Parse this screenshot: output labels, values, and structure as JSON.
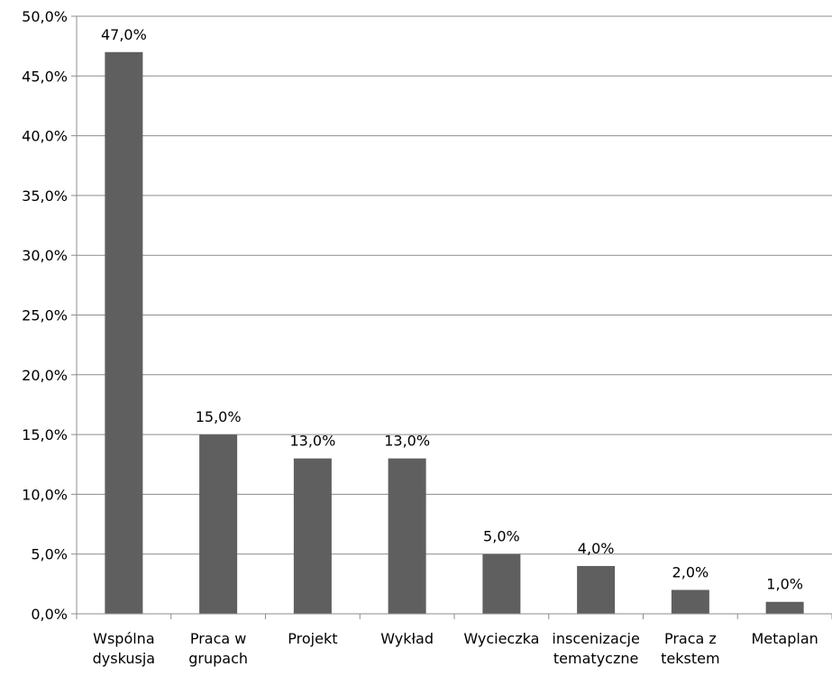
{
  "chart_data": {
    "type": "bar",
    "title": "",
    "xlabel": "",
    "ylabel": "",
    "ylim": [
      0,
      50
    ],
    "y_ticks": [
      0,
      5,
      10,
      15,
      20,
      25,
      30,
      35,
      40,
      45,
      50
    ],
    "y_tick_labels": [
      "0,0%",
      "5,0%",
      "10,0%",
      "15,0%",
      "20,0%",
      "25,0%",
      "30,0%",
      "35,0%",
      "40,0%",
      "45,0%",
      "50,0%"
    ],
    "grid": true,
    "legend": "none",
    "bar_color": "#5f5f5f",
    "grid_color": "#8c8c8c",
    "categories": [
      [
        "Wspólna",
        "dyskusja"
      ],
      [
        "Praca w",
        "grupach"
      ],
      [
        "Projekt"
      ],
      [
        "Wykład"
      ],
      [
        "Wycieczka"
      ],
      [
        "inscenizacje",
        "tematyczne"
      ],
      [
        "Praca z",
        "tekstem"
      ],
      [
        "Metaplan"
      ]
    ],
    "values": [
      47.0,
      15.0,
      13.0,
      13.0,
      5.0,
      4.0,
      2.0,
      1.0
    ],
    "data_labels": [
      "47,0%",
      "15,0%",
      "13,0%",
      "13,0%",
      "5,0%",
      "4,0%",
      "2,0%",
      "1,0%"
    ]
  }
}
